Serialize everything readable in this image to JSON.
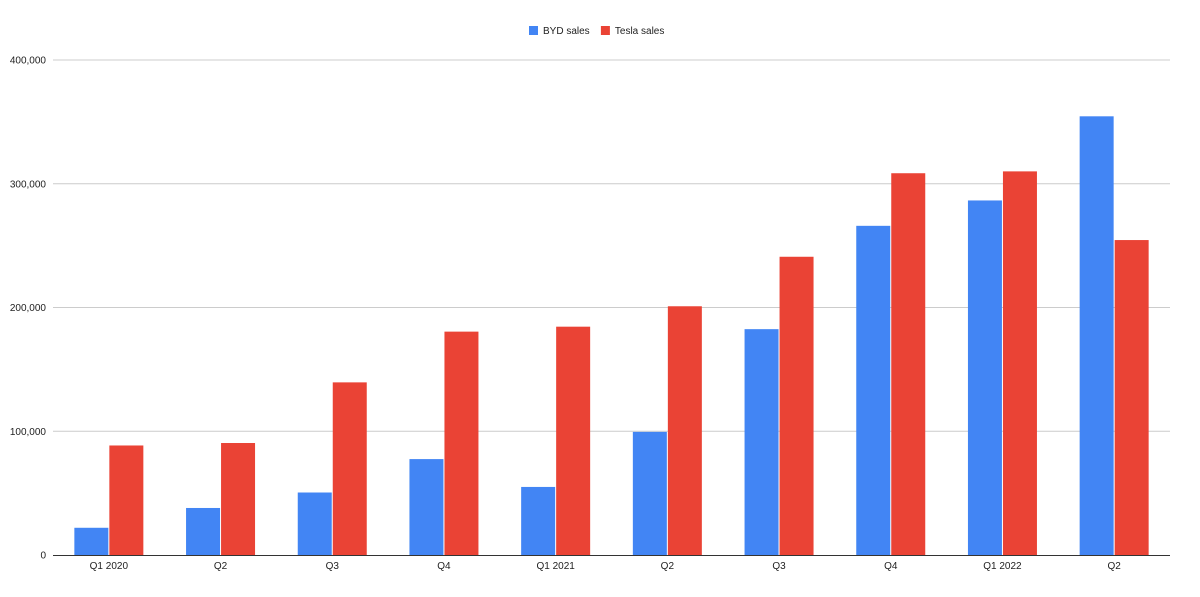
{
  "chart_data": {
    "type": "bar",
    "categories": [
      "Q1 2020",
      "Q2",
      "Q3",
      "Q4",
      "Q1 2021",
      "Q2",
      "Q3",
      "Q4",
      "Q1 2022",
      "Q2"
    ],
    "series": [
      {
        "name": "BYD sales",
        "color": "#4285F4",
        "values": [
          22000,
          38000,
          50500,
          77500,
          55000,
          99500,
          182500,
          266000,
          286500,
          354500
        ]
      },
      {
        "name": "Tesla sales",
        "color": "#EA4335",
        "values": [
          88500,
          90500,
          139500,
          180500,
          184500,
          201000,
          241000,
          308500,
          310000,
          254500
        ]
      }
    ],
    "yticks": [
      0,
      100000,
      200000,
      300000,
      400000
    ],
    "ytick_labels": [
      "0",
      "100,000",
      "200,000",
      "300,000",
      "400,000"
    ],
    "ylim": [
      0,
      400000
    ],
    "grid": true,
    "legend_position": "top-center",
    "gridline_color": "#cccccc",
    "axis_color": "#333333"
  }
}
